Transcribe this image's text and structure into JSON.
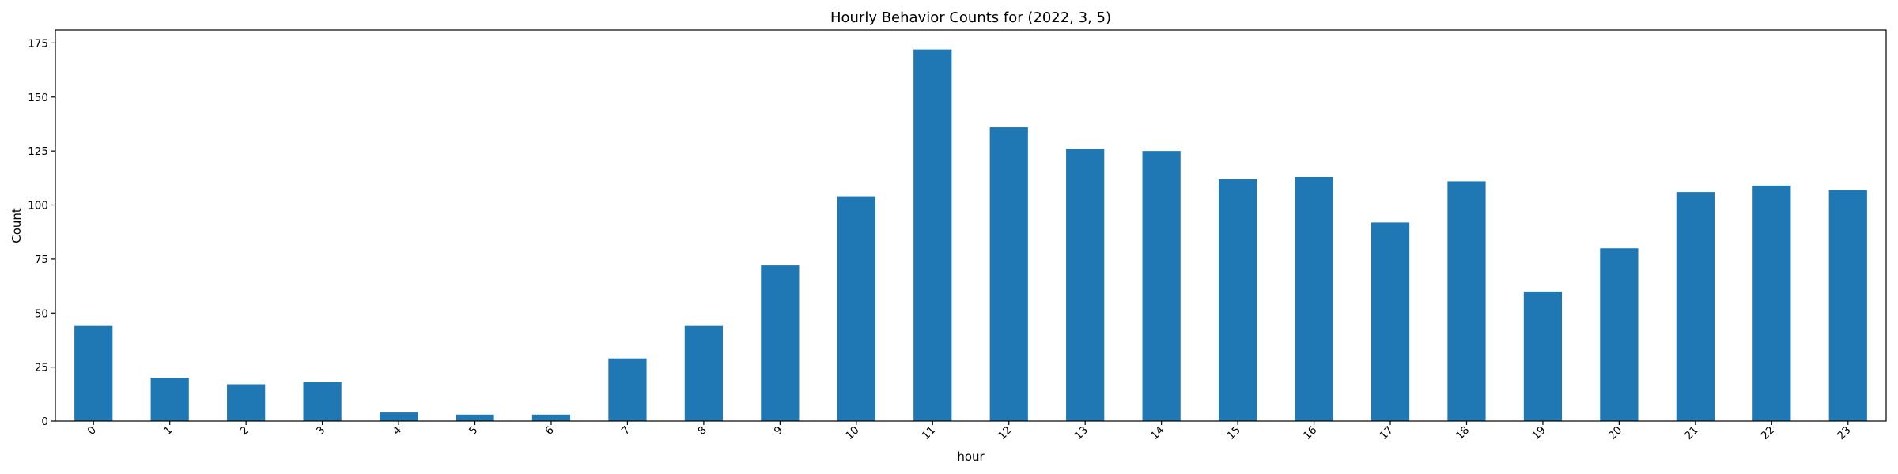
{
  "chart_data": {
    "type": "bar",
    "title": "Hourly Behavior Counts for (2022, 3, 5)",
    "xlabel": "hour",
    "ylabel": "Count",
    "categories": [
      "0",
      "1",
      "2",
      "3",
      "4",
      "5",
      "6",
      "7",
      "8",
      "9",
      "10",
      "11",
      "12",
      "13",
      "14",
      "15",
      "16",
      "17",
      "18",
      "19",
      "20",
      "21",
      "22",
      "23"
    ],
    "values": [
      44,
      20,
      17,
      18,
      4,
      3,
      3,
      29,
      44,
      72,
      104,
      172,
      136,
      126,
      125,
      112,
      113,
      92,
      111,
      60,
      80,
      106,
      109,
      107
    ],
    "ylim": [
      0,
      181
    ],
    "yticks": [
      0,
      25,
      50,
      75,
      100,
      125,
      150,
      175
    ],
    "xtick_rotation": 45,
    "grid": false,
    "legend": "none",
    "bar_color": "#1f77b4"
  }
}
